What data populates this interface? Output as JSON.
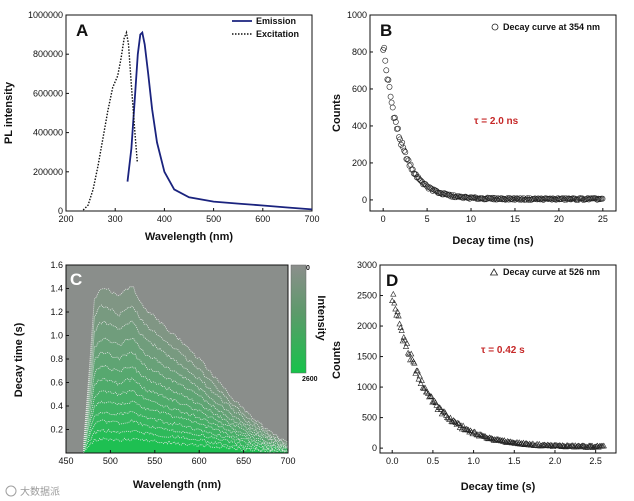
{
  "chart_data": [
    {
      "type": "line",
      "panel_label": "A",
      "xlabel": "Wavelength (nm)",
      "ylabel": "PL intensity",
      "xlim": [
        200,
        700
      ],
      "ylim": [
        0,
        1000000
      ],
      "xticks": [
        200,
        300,
        400,
        500,
        600,
        700
      ],
      "yticks": [
        0,
        200000,
        400000,
        600000,
        800000,
        1000000
      ],
      "series": [
        {
          "name": "Emission",
          "style": "solid",
          "color": "#1a237e",
          "x": [
            325,
            333,
            340,
            346,
            351,
            355,
            360,
            367,
            375,
            385,
            400,
            420,
            450,
            500,
            550,
            600,
            650,
            700
          ],
          "y": [
            150000,
            320000,
            580000,
            800000,
            900000,
            910000,
            850000,
            700000,
            520000,
            350000,
            200000,
            110000,
            70000,
            48000,
            38000,
            28000,
            18000,
            8000
          ]
        },
        {
          "name": "Excitation",
          "style": "dotted",
          "color": "#111111",
          "x": [
            235,
            245,
            255,
            265,
            275,
            285,
            295,
            305,
            312,
            318,
            323,
            327,
            333,
            340,
            345
          ],
          "y": [
            5000,
            30000,
            110000,
            230000,
            370000,
            510000,
            630000,
            690000,
            780000,
            880000,
            910000,
            850000,
            640000,
            400000,
            250000
          ]
        }
      ]
    },
    {
      "type": "scatter",
      "panel_label": "B",
      "legend": "Decay curve at 354 nm",
      "annotation": "τ = 2.0 ns",
      "xlabel": "Decay time (ns)",
      "ylabel": "Counts",
      "xlim": [
        -1.5,
        26.5
      ],
      "ylim": [
        -60,
        1000
      ],
      "xticks": [
        0,
        5,
        10,
        15,
        20,
        25
      ],
      "yticks": [
        0,
        200,
        400,
        600,
        800,
        1000
      ],
      "model": {
        "amplitude": 840,
        "tau": 2.0,
        "baseline": 5,
        "x_start": 0,
        "x_end": 25,
        "x_step": 0.12
      }
    },
    {
      "type": "heatmap",
      "panel_label": "C",
      "xlabel": "Wavelength (nm)",
      "ylabel": "Decay time (s)",
      "xlim": [
        450,
        700
      ],
      "ylim": [
        0,
        1.6
      ],
      "xticks": [
        450,
        500,
        550,
        600,
        650,
        700
      ],
      "yticks": [
        0.2,
        0.4,
        0.6,
        0.8,
        1.0,
        1.2,
        1.4,
        1.6
      ],
      "colorbar": {
        "label": "Intensity",
        "min_label": "0",
        "max_label": "2600"
      },
      "contour_levels": [
        1.42,
        1.26,
        1.12,
        0.98,
        0.86,
        0.74,
        0.63,
        0.53,
        0.44,
        0.35,
        0.27,
        0.19,
        0.12
      ],
      "envelope": {
        "x": [
          470,
          478,
          482,
          488,
          495,
          503,
          510,
          518,
          525,
          533,
          542,
          550,
          560,
          580,
          600,
          620,
          640,
          660,
          680,
          700
        ],
        "y": [
          0.1,
          0.9,
          1.3,
          1.4,
          1.41,
          1.36,
          1.33,
          1.39,
          1.42,
          1.3,
          1.2,
          1.16,
          1.08,
          0.95,
          0.8,
          0.62,
          0.45,
          0.3,
          0.18,
          0.08
        ]
      }
    },
    {
      "type": "scatter",
      "panel_label": "D",
      "legend": "Decay curve at 526 nm",
      "annotation": "τ = 0.42 s",
      "xlabel": "Decay time (s)",
      "ylabel": "Counts",
      "xlim": [
        -0.15,
        2.75
      ],
      "ylim": [
        -80,
        3000
      ],
      "xticks": [
        0.0,
        0.5,
        1.0,
        1.5,
        2.0,
        2.5
      ],
      "yticks": [
        0,
        500,
        1000,
        1500,
        2000,
        2500,
        3000
      ],
      "model": {
        "amplitude": 2500,
        "tau": 0.42,
        "baseline": 15,
        "x_start": 0,
        "x_end": 2.6,
        "x_step": 0.013
      }
    }
  ],
  "watermark": "大数据派"
}
